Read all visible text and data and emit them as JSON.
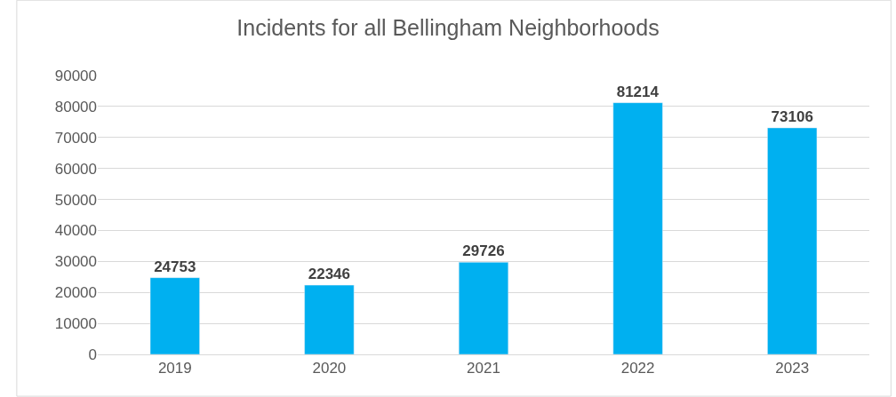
{
  "chart_data": {
    "type": "bar",
    "title": "Incidents for all Bellingham Neighborhoods",
    "categories": [
      "2019",
      "2020",
      "2021",
      "2022",
      "2023"
    ],
    "values": [
      24753,
      22346,
      29726,
      81214,
      73106
    ],
    "color": "#00b0f0",
    "ylim": [
      0,
      90000
    ],
    "yticks": [
      0,
      10000,
      20000,
      30000,
      40000,
      50000,
      60000,
      70000,
      80000,
      90000
    ],
    "grid": "y",
    "data_labels": true,
    "legend": false
  }
}
